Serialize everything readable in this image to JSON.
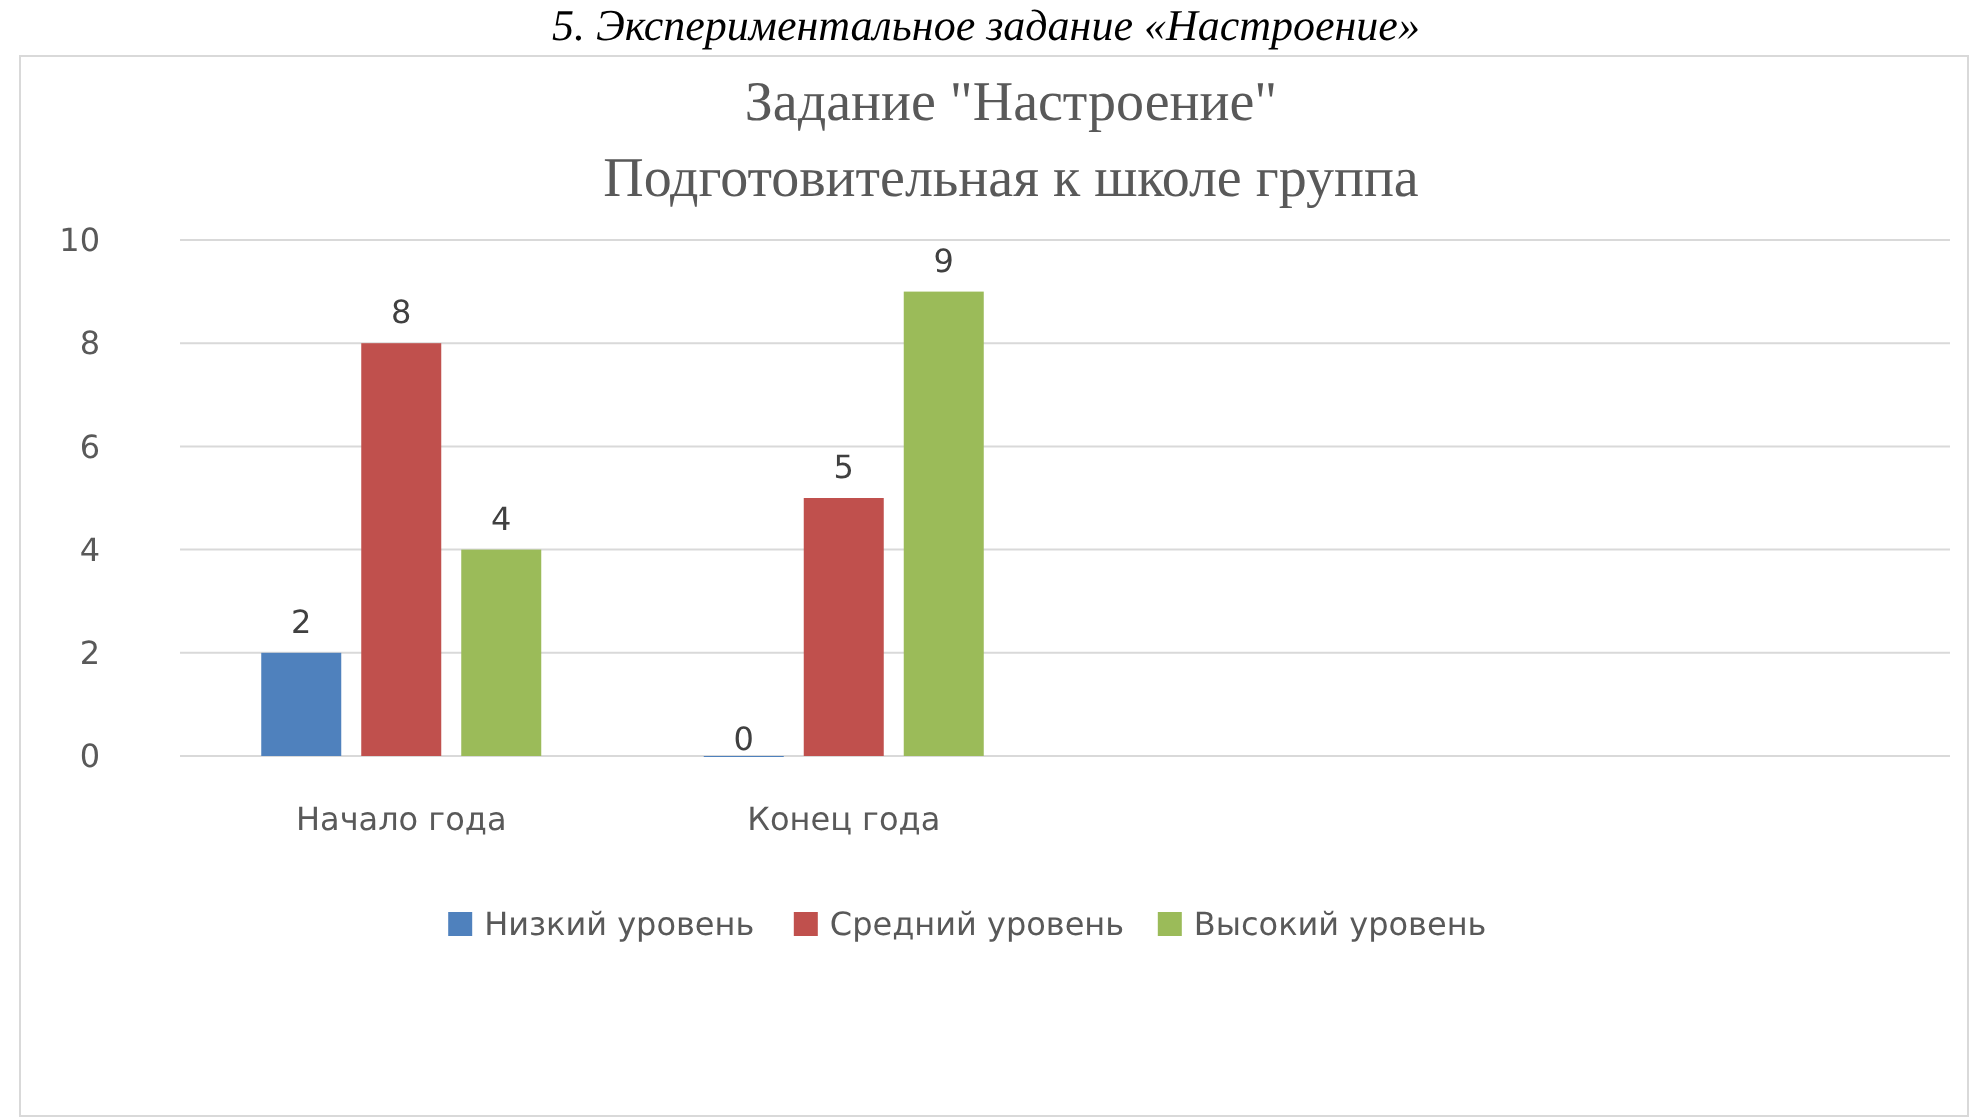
{
  "chart_data": {
    "type": "bar",
    "title": "Задание \"Настроение\"",
    "subtitle": "Подготовительная к школе группа",
    "annotations": [
      "5. Экспериментальное задание «Настроение»"
    ],
    "categories": [
      "Начало года",
      "Конец года",
      null,
      null
    ],
    "series": [
      {
        "name": "Низкий уровень",
        "color": "#4f81bd",
        "values": [
          2,
          0,
          null,
          null
        ]
      },
      {
        "name": "Средний уровень",
        "color": "#c0504d",
        "values": [
          8,
          5,
          null,
          null
        ]
      },
      {
        "name": "Высокий уровень",
        "color": "#9bbb59",
        "values": [
          4,
          9,
          null,
          null
        ]
      }
    ],
    "ylim": [
      0,
      10
    ],
    "yticks": [
      0,
      2,
      4,
      6,
      8,
      10
    ],
    "grid": "y",
    "legend": "bottom",
    "data_labels": true
  }
}
